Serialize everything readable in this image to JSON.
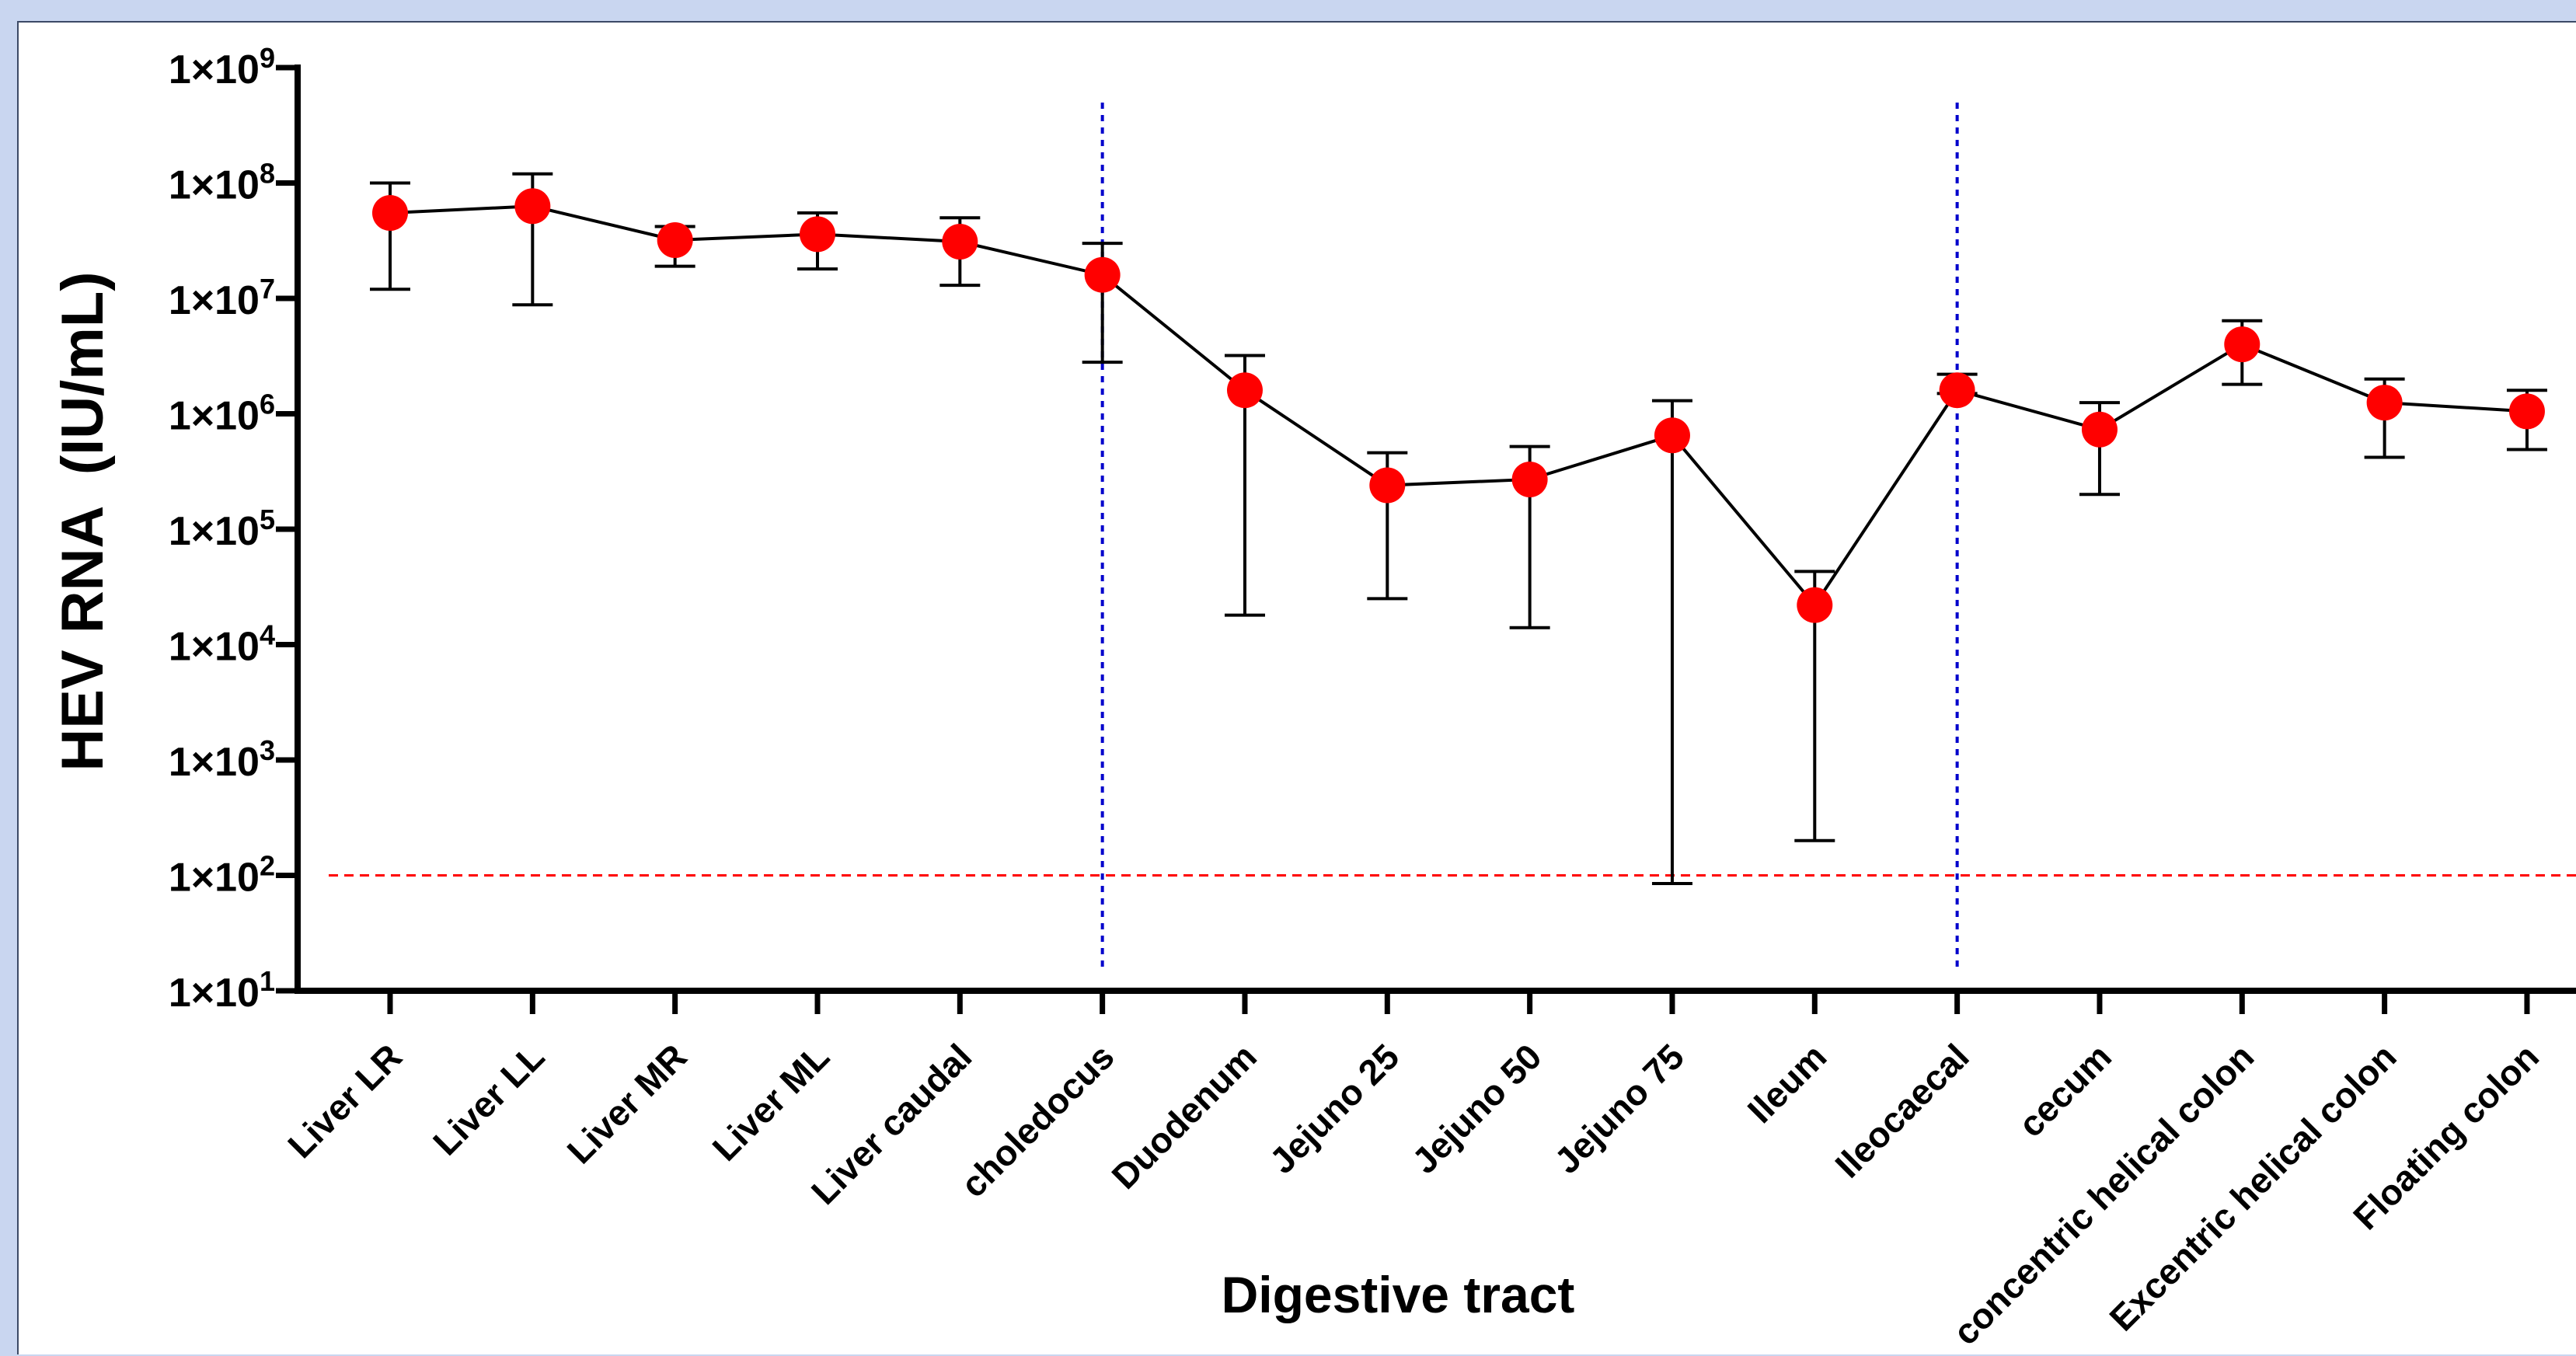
{
  "chart_data": {
    "type": "line",
    "xlabel": "Digestive tract",
    "ylabel": "HEV RNA  (IU/mL)",
    "yscale": "log",
    "ylim": [
      10,
      1000000000
    ],
    "y_ticks": [
      {
        "value": 10,
        "base": "1×10",
        "exp": "1"
      },
      {
        "value": 100,
        "base": "1×10",
        "exp": "2"
      },
      {
        "value": 1000,
        "base": "1×10",
        "exp": "3"
      },
      {
        "value": 10000,
        "base": "1×10",
        "exp": "4"
      },
      {
        "value": 100000,
        "base": "1×10",
        "exp": "5"
      },
      {
        "value": 1000000,
        "base": "1×10",
        "exp": "6"
      },
      {
        "value": 10000000,
        "base": "1×10",
        "exp": "7"
      },
      {
        "value": 100000000,
        "base": "1×10",
        "exp": "8"
      },
      {
        "value": 1000000000,
        "base": "1×10",
        "exp": "9"
      }
    ],
    "categories": [
      "Liver LR",
      "Liver LL",
      "Liver MR",
      "Liver ML",
      "Liver caudal",
      "choledocus",
      "Duodenum",
      "Jejuno 25",
      "Jejuno 50",
      "Jejuno 75",
      "Ileum",
      "Ileocaecal",
      "cecum",
      "concentric helical colon",
      "Excentric helical colon",
      "Floating colon"
    ],
    "series": [
      {
        "values": [
          55000000,
          63000000,
          32000000,
          36000000,
          31000000,
          16000000,
          1600000,
          240000,
          270000,
          650000,
          22000,
          1600000,
          730000,
          4000000,
          1250000,
          1050000
        ],
        "error_upper": [
          100000000,
          120000000,
          42000000,
          55000000,
          50000000,
          30000000,
          3200000,
          460000,
          520000,
          1300000,
          43000,
          2200000,
          1250000,
          6400000,
          2000000,
          1600000
        ],
        "error_lower": [
          12000000,
          8800000,
          19000000,
          18000000,
          13000000,
          2800000,
          18000,
          25000,
          14000,
          85,
          200,
          1500000,
          200000,
          1800000,
          420000,
          490000
        ],
        "color": "#ff0000"
      }
    ],
    "reference_lines": [
      {
        "orientation": "horizontal",
        "value": 100,
        "color": "#ff0000",
        "style": "dashed"
      },
      {
        "orientation": "vertical",
        "category": "choledocus",
        "color": "#0000cc",
        "style": "dotted"
      },
      {
        "orientation": "vertical",
        "category": "Ileocaecal",
        "color": "#0000cc",
        "style": "dotted"
      }
    ],
    "grid": false,
    "legend": "none"
  }
}
